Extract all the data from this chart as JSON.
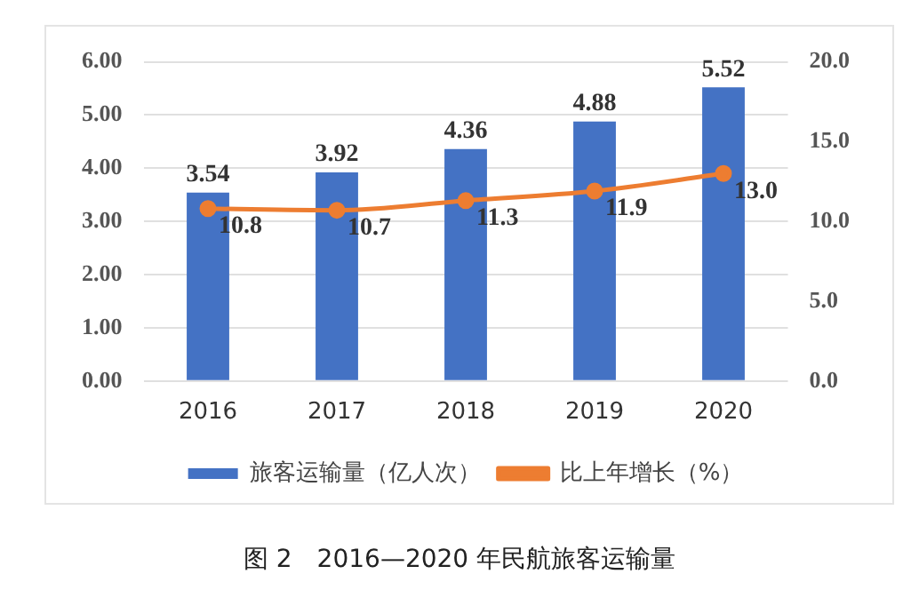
{
  "chart_data": {
    "type": "bar",
    "title": "图 2　2016—2020 年民航旅客运输量",
    "categories": [
      "2016",
      "2017",
      "2018",
      "2019",
      "2020"
    ],
    "series": [
      {
        "name": "旅客运输量（亿人次）",
        "color": "#4472c4",
        "values": [
          3.54,
          3.92,
          4.36,
          4.88,
          5.52
        ],
        "value_labels": [
          "3.54",
          "3.92",
          "4.36",
          "4.88",
          "5.52"
        ]
      },
      {
        "name": "比上年增长（%）",
        "type": "line",
        "axis": "y2",
        "color": "#ed7d31",
        "values": [
          10.8,
          10.7,
          11.3,
          11.9,
          13.0
        ],
        "value_labels": [
          "10.8",
          "10.7",
          "11.3",
          "11.9",
          "13.0"
        ]
      }
    ],
    "ylim": [
      0,
      6
    ],
    "yticks": [
      {
        "value": 0,
        "label": "0.00"
      },
      {
        "value": 1,
        "label": "1.00"
      },
      {
        "value": 2,
        "label": "2.00"
      },
      {
        "value": 3,
        "label": "3.00"
      },
      {
        "value": 4,
        "label": "4.00"
      },
      {
        "value": 5,
        "label": "5.00"
      },
      {
        "value": 6,
        "label": "6.00"
      }
    ],
    "y2lim": [
      0,
      20
    ],
    "y2ticks": [
      {
        "value": 0,
        "label": "0.0"
      },
      {
        "value": 5,
        "label": "5.0"
      },
      {
        "value": 10,
        "label": "10.0"
      },
      {
        "value": 15,
        "label": "15.0"
      },
      {
        "value": 20,
        "label": "20.0"
      }
    ],
    "grid": "y",
    "legend": "bottom",
    "marker": "circle"
  }
}
